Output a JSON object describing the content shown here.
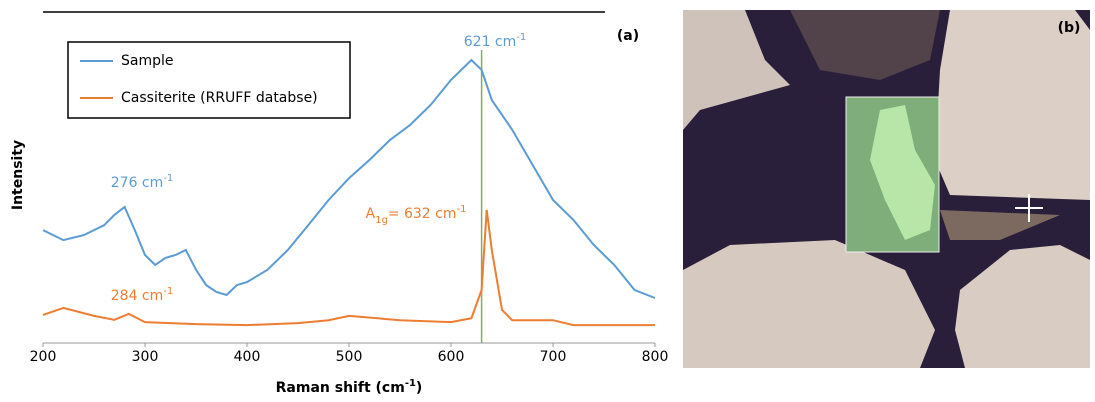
{
  "chart_data": {
    "type": "line",
    "panel_label": "(a)",
    "x_label": [
      {
        "text": "Raman shift (cm",
        "style": "normal"
      },
      {
        "text": "-1",
        "style": "sup"
      },
      {
        "text": ")",
        "style": "normal"
      }
    ],
    "y_label": "Intensity",
    "xlim": [
      200,
      800
    ],
    "xticks": [
      200,
      300,
      400,
      500,
      600,
      700,
      800
    ],
    "ylim": [
      0,
      100
    ],
    "legend": "top-left",
    "series": [
      {
        "name": "Sample",
        "color": "#5b9bd5",
        "x": [
          200,
          220,
          240,
          260,
          270,
          280,
          290,
          300,
          310,
          320,
          330,
          340,
          350,
          360,
          370,
          380,
          390,
          400,
          420,
          440,
          460,
          480,
          500,
          520,
          540,
          560,
          580,
          600,
          620,
          630,
          640,
          660,
          680,
          700,
          720,
          740,
          760,
          780,
          800
        ],
        "values": [
          34.1,
          31.1,
          32.6,
          35.6,
          38.7,
          41.1,
          34.1,
          26.6,
          23.6,
          25.7,
          26.6,
          28.1,
          22.1,
          17.5,
          15.4,
          14.5,
          17.5,
          18.4,
          22.1,
          28.1,
          35.6,
          43.2,
          49.8,
          55.3,
          61.3,
          65.9,
          71.9,
          79.5,
          85.5,
          82.5,
          73.4,
          64.4,
          53.8,
          43.2,
          37.2,
          29.6,
          23.6,
          16.0,
          13.6
        ]
      },
      {
        "name": "Cassiterite (RRUFF databse)",
        "color": "#ed7d31",
        "x": [
          200,
          220,
          250,
          270,
          284,
          300,
          350,
          400,
          450,
          480,
          500,
          550,
          600,
          620,
          630,
          635,
          640,
          650,
          660,
          700,
          720,
          800
        ],
        "values": [
          8.5,
          10.6,
          8.2,
          7.0,
          8.8,
          6.3,
          5.7,
          5.4,
          6.0,
          6.9,
          8.2,
          6.9,
          6.3,
          7.5,
          16.0,
          40.2,
          28.1,
          10.0,
          6.9,
          6.9,
          5.4,
          5.4
        ]
      }
    ],
    "reference_line": {
      "x": 630,
      "color": "#8aaa5a"
    },
    "annotations": [
      {
        "color": "#5b9bd5",
        "parts": [
          {
            "text": "621 cm",
            "style": "normal"
          },
          {
            "text": "-1",
            "style": "sup"
          }
        ]
      },
      {
        "color": "#5b9bd5",
        "parts": [
          {
            "text": "276 cm",
            "style": "normal"
          },
          {
            "text": "-1",
            "style": "sup"
          }
        ]
      },
      {
        "color": "#ed7d31",
        "parts": [
          {
            "text": "284 cm",
            "style": "normal"
          },
          {
            "text": "-1",
            "style": "sup"
          }
        ]
      },
      {
        "color": "#ed7d31",
        "parts": [
          {
            "text": "A",
            "style": "normal"
          },
          {
            "text": "1g",
            "style": "sub"
          },
          {
            "text": "= 632 cm",
            "style": "normal"
          },
          {
            "text": "-1",
            "style": "sup"
          }
        ]
      }
    ]
  },
  "image_panel": {
    "label": "(b)"
  }
}
